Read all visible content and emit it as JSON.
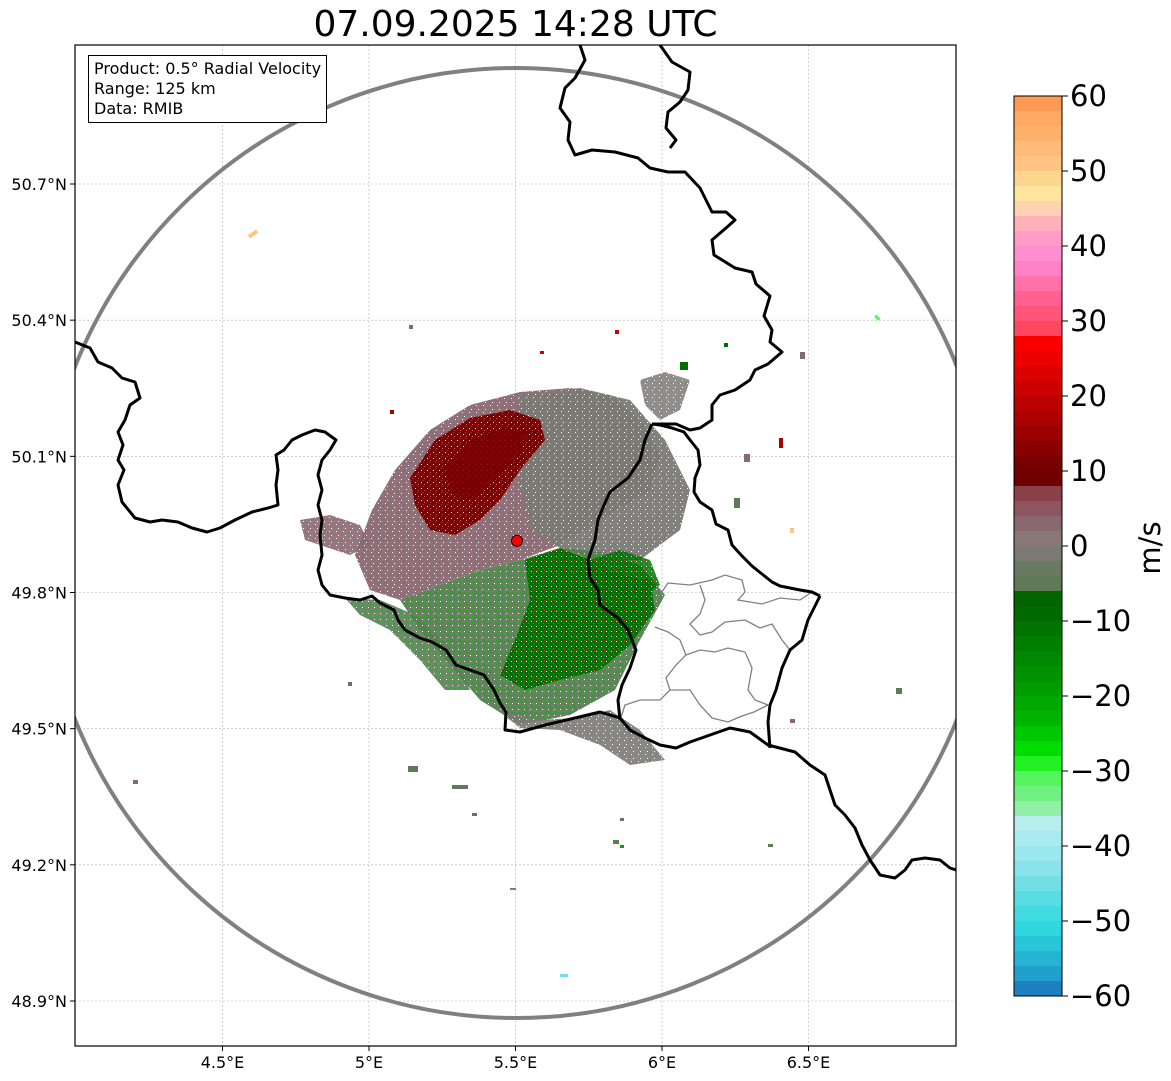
{
  "title": "07.09.2025 14:28 UTC",
  "info": {
    "product": "Product: 0.5° Radial Velocity",
    "range": "Range: 125 km",
    "data": "Data: RMIB"
  },
  "map": {
    "lon_range": [
      4.0,
      7.0
    ],
    "lat_range": [
      48.8,
      50.98
    ],
    "x_ticks": [
      {
        "value": 4.5,
        "label": "4.5°E"
      },
      {
        "value": 5.0,
        "label": "5°E"
      },
      {
        "value": 5.5,
        "label": "5.5°E"
      },
      {
        "value": 6.0,
        "label": "6°E"
      },
      {
        "value": 6.5,
        "label": "6.5°E"
      }
    ],
    "y_ticks": [
      {
        "value": 48.9,
        "label": "48.9°N"
      },
      {
        "value": 49.2,
        "label": "49.2°N"
      },
      {
        "value": 49.5,
        "label": "49.5°N"
      },
      {
        "value": 49.8,
        "label": "49.8°N"
      },
      {
        "value": 50.1,
        "label": "50.1°N"
      },
      {
        "value": 50.4,
        "label": "50.4°N"
      },
      {
        "value": 50.7,
        "label": "50.7°N"
      }
    ],
    "radar_site": {
      "lon": 5.505,
      "lat": 49.914
    },
    "gridlines": true
  },
  "colorbar": {
    "unit_label": "m/s",
    "min": -60,
    "max": 60,
    "ticks": [
      60,
      50,
      40,
      30,
      20,
      10,
      0,
      -10,
      -20,
      -30,
      -40,
      -50,
      -60
    ],
    "tick_labels": [
      "60",
      "50",
      "40",
      "30",
      "20",
      "10",
      "0",
      "−10",
      "−20",
      "−30",
      "−40",
      "−50",
      "−60"
    ],
    "bands": [
      {
        "from": 58,
        "to": 60,
        "color": "#ff9a55"
      },
      {
        "from": 56,
        "to": 58,
        "color": "#ffa862"
      },
      {
        "from": 54,
        "to": 56,
        "color": "#ffb06a"
      },
      {
        "from": 52,
        "to": 54,
        "color": "#ffbb78"
      },
      {
        "from": 50,
        "to": 52,
        "color": "#ffc482"
      },
      {
        "from": 48,
        "to": 50,
        "color": "#ffd68e"
      },
      {
        "from": 46,
        "to": 48,
        "color": "#ffe59e"
      },
      {
        "from": 44,
        "to": 46,
        "color": "#ffd3b1"
      },
      {
        "from": 42,
        "to": 44,
        "color": "#ffb0b8"
      },
      {
        "from": 40,
        "to": 42,
        "color": "#ff9dc8"
      },
      {
        "from": 38,
        "to": 40,
        "color": "#ff8fd0"
      },
      {
        "from": 36,
        "to": 38,
        "color": "#ff82c8"
      },
      {
        "from": 34,
        "to": 36,
        "color": "#ff72aa"
      },
      {
        "from": 32,
        "to": 34,
        "color": "#ff6290"
      },
      {
        "from": 30,
        "to": 32,
        "color": "#ff5578"
      },
      {
        "from": 28,
        "to": 30,
        "color": "#ff4860"
      },
      {
        "from": 26,
        "to": 28,
        "color": "#fa0000"
      },
      {
        "from": 24,
        "to": 26,
        "color": "#ee0000"
      },
      {
        "from": 22,
        "to": 24,
        "color": "#dd0000"
      },
      {
        "from": 20,
        "to": 22,
        "color": "#cc0000"
      },
      {
        "from": 18,
        "to": 20,
        "color": "#bb0000"
      },
      {
        "from": 16,
        "to": 18,
        "color": "#aa0000"
      },
      {
        "from": 14,
        "to": 16,
        "color": "#990000"
      },
      {
        "from": 12,
        "to": 14,
        "color": "#880000"
      },
      {
        "from": 10,
        "to": 12,
        "color": "#770000"
      },
      {
        "from": 8,
        "to": 10,
        "color": "#6e0000"
      },
      {
        "from": 6,
        "to": 8,
        "color": "#8a4048"
      },
      {
        "from": 4,
        "to": 6,
        "color": "#8c5560"
      },
      {
        "from": 2,
        "to": 4,
        "color": "#8a6870"
      },
      {
        "from": 0,
        "to": 2,
        "color": "#8a7878"
      },
      {
        "from": -2,
        "to": 0,
        "color": "#7a7a72"
      },
      {
        "from": -4,
        "to": -2,
        "color": "#6a7a62"
      },
      {
        "from": -6,
        "to": -4,
        "color": "#5e7a58"
      },
      {
        "from": -8,
        "to": -6,
        "color": "#006400"
      },
      {
        "from": -10,
        "to": -8,
        "color": "#006a00"
      },
      {
        "from": -12,
        "to": -10,
        "color": "#007400"
      },
      {
        "from": -14,
        "to": -12,
        "color": "#007e00"
      },
      {
        "from": -16,
        "to": -14,
        "color": "#008800"
      },
      {
        "from": -18,
        "to": -16,
        "color": "#009200"
      },
      {
        "from": -20,
        "to": -18,
        "color": "#009c00"
      },
      {
        "from": -22,
        "to": -20,
        "color": "#00a800"
      },
      {
        "from": -24,
        "to": -22,
        "color": "#00b400"
      },
      {
        "from": -26,
        "to": -24,
        "color": "#00c800"
      },
      {
        "from": -28,
        "to": -26,
        "color": "#00dc00"
      },
      {
        "from": -30,
        "to": -28,
        "color": "#22f022"
      },
      {
        "from": -32,
        "to": -30,
        "color": "#55f560"
      },
      {
        "from": -34,
        "to": -32,
        "color": "#70f080"
      },
      {
        "from": -36,
        "to": -34,
        "color": "#90f0a8"
      },
      {
        "from": -38,
        "to": -36,
        "color": "#b8eef0"
      },
      {
        "from": -40,
        "to": -38,
        "color": "#a8eaee"
      },
      {
        "from": -42,
        "to": -40,
        "color": "#98e8ec"
      },
      {
        "from": -44,
        "to": -42,
        "color": "#88e4ea"
      },
      {
        "from": -46,
        "to": -44,
        "color": "#70e0e6"
      },
      {
        "from": -48,
        "to": -46,
        "color": "#58dde4"
      },
      {
        "from": -50,
        "to": -48,
        "color": "#40dae0"
      },
      {
        "from": -52,
        "to": -50,
        "color": "#2ed8de"
      },
      {
        "from": -54,
        "to": -52,
        "color": "#28c6d8"
      },
      {
        "from": -56,
        "to": -54,
        "color": "#25b4d2"
      },
      {
        "from": -58,
        "to": -56,
        "color": "#22a0cc"
      },
      {
        "from": -60,
        "to": -58,
        "color": "#1f80c0"
      }
    ]
  },
  "colors": {
    "range_ring": "#808080",
    "country_border": "#000000",
    "admin_border": "#808080",
    "grid": "#b0b0b0",
    "radar_marker": "#ff0000"
  }
}
